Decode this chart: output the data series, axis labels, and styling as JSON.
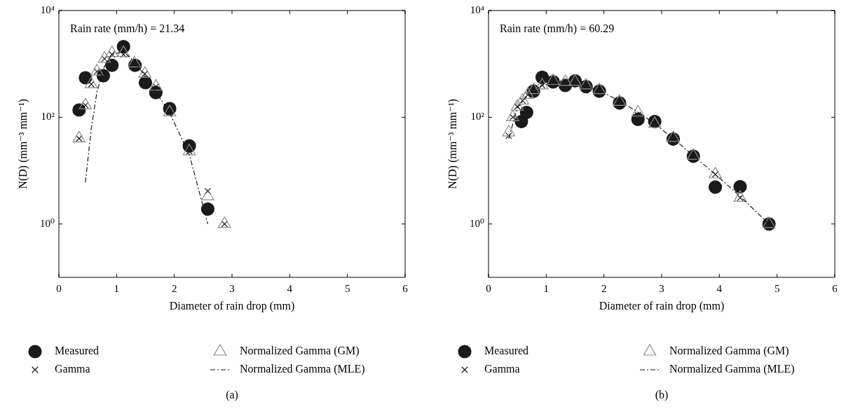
{
  "chart_data": [
    {
      "type": "scatter",
      "xlabel": "Diameter of rain drop (mm)",
      "ylabel": "N(D) (mm⁻³ mm⁻¹)",
      "log": "y",
      "grid": false,
      "legend": "bottom",
      "xlim": [
        0,
        6
      ],
      "xticks": [
        0,
        1,
        2,
        3,
        4,
        5,
        6
      ],
      "ylim": [
        0.1,
        10000
      ],
      "yticks": [
        {
          "value": 1,
          "label": "10⁰"
        },
        {
          "value": 100,
          "label": "10²"
        },
        {
          "value": 10000,
          "label": "10⁴"
        }
      ],
      "annotations": [
        "Rain rate (mm/h) = 21.34",
        "(a)"
      ],
      "series": [
        {
          "name": "Measured",
          "marker": "circle",
          "color": "#1a1a1a",
          "x": [
            0.35,
            0.46,
            0.77,
            0.92,
            1.12,
            1.32,
            1.5,
            1.68,
            1.92,
            2.26,
            2.58
          ],
          "values": [
            137,
            550,
            600,
            940,
            2100,
            940,
            445,
            290,
            145,
            29,
            1.9
          ]
        },
        {
          "name": "Gamma",
          "type": "scatter",
          "marker": "cross",
          "color": "#1a1a1a",
          "x": [
            0.35,
            0.46,
            0.56,
            0.66,
            0.79,
            0.92,
            1.12,
            1.31,
            1.49,
            1.68,
            1.92,
            2.26,
            2.58,
            2.87
          ],
          "values": [
            40,
            167,
            415,
            720,
            1250,
            1500,
            1500,
            null,
            650,
            375,
            124,
            23,
            4.1,
            1.0
          ]
        },
        {
          "name": "Normalized Gamma (GM)",
          "type": "scatter",
          "marker": "triangle",
          "color": "#8c8c8c",
          "x": [
            0.35,
            0.46,
            0.56,
            0.66,
            0.79,
            0.92,
            1.12,
            1.31,
            1.49,
            1.68,
            1.92,
            2.26,
            2.58,
            2.87
          ],
          "values": [
            40,
            167,
            415,
            720,
            1250,
            1600,
            1600,
            1020,
            650,
            375,
            124,
            23,
            3.3,
            1.0
          ]
        },
        {
          "name": "Normalized Gamma (MLE)",
          "type": "line",
          "marker": "none",
          "line_style": "dashed",
          "color": "#1a1a1a",
          "x": [
            0.46,
            0.56,
            0.66,
            0.79,
            0.92,
            1.12,
            1.31,
            1.49,
            1.68,
            1.92,
            2.26,
            2.58
          ],
          "values": [
            6,
            60,
            300,
            900,
            1500,
            1700,
            1100,
            600,
            300,
            120,
            20,
            1.0
          ]
        }
      ]
    },
    {
      "type": "scatter",
      "xlabel": "Diameter of rain drop (mm)",
      "ylabel": "N(D) (mm⁻³ mm⁻¹)",
      "log": "y",
      "grid": false,
      "legend": "bottom",
      "xlim": [
        0,
        6
      ],
      "xticks": [
        0,
        1,
        2,
        3,
        4,
        5,
        6
      ],
      "ylim": [
        0.1,
        10000
      ],
      "yticks": [
        {
          "value": 1,
          "label": "10⁰"
        },
        {
          "value": 100,
          "label": "10²"
        },
        {
          "value": 10000,
          "label": "10⁴"
        }
      ],
      "annotations": [
        "Rain rate (mm/h) = 60.29",
        "(b)"
      ],
      "series": [
        {
          "name": "Measured",
          "marker": "circle",
          "color": "#1a1a1a",
          "x": [
            0.57,
            0.66,
            0.78,
            0.93,
            1.12,
            1.33,
            1.5,
            1.69,
            1.92,
            2.27,
            2.59,
            2.88,
            3.2,
            3.55,
            3.93,
            4.36,
            4.86
          ],
          "values": [
            83,
            123,
            308,
            560,
            460,
            395,
            480,
            375,
            308,
            185,
            91,
            83,
            39,
            18.6,
            4.9,
            5.0,
            1.0
          ]
        },
        {
          "name": "Gamma",
          "type": "scatter",
          "marker": "cross",
          "color": "#1a1a1a",
          "x": [
            0.35,
            0.42,
            0.5,
            0.59,
            0.68,
            0.78,
            0.93,
            1.12,
            1.33,
            1.5,
            1.69,
            1.92,
            2.27,
            2.59,
            2.88,
            3.2,
            3.55,
            3.93,
            4.36
          ],
          "values": [
            45,
            100,
            158,
            205,
            263,
            null,
            395,
            null,
            460,
            null,
            null,
            null,
            null,
            110,
            null,
            null,
            null,
            8.5,
            3.1
          ]
        },
        {
          "name": "Normalized Gamma (GM)",
          "type": "scatter",
          "marker": "triangle",
          "color": "#8c8c8c",
          "x": [
            0.35,
            0.42,
            0.5,
            0.59,
            0.68,
            0.78,
            0.93,
            1.12,
            1.33,
            1.5,
            1.69,
            1.92,
            2.27,
            2.59,
            2.88,
            3.2,
            3.55,
            3.93,
            4.36,
            4.86
          ],
          "values": [
            52,
            100,
            158,
            205,
            263,
            322,
            395,
            480,
            460,
            460,
            395,
            322,
            195,
            123,
            75,
            41,
            19,
            8.5,
            3.1,
            1.0
          ]
        },
        {
          "name": "Normalized Gamma (MLE)",
          "type": "line",
          "marker": "none",
          "line_style": "dashed",
          "color": "#1a1a1a",
          "x": [
            0.35,
            0.5,
            0.7,
            0.93,
            1.2,
            1.5,
            1.92,
            2.27,
            2.59,
            2.88,
            3.2,
            3.55,
            3.93,
            4.36,
            4.86,
            4.95
          ],
          "values": [
            40,
            150,
            280,
            400,
            450,
            430,
            320,
            200,
            125,
            75,
            40,
            19,
            8.5,
            3.3,
            1.0,
            0.85
          ]
        }
      ]
    }
  ]
}
